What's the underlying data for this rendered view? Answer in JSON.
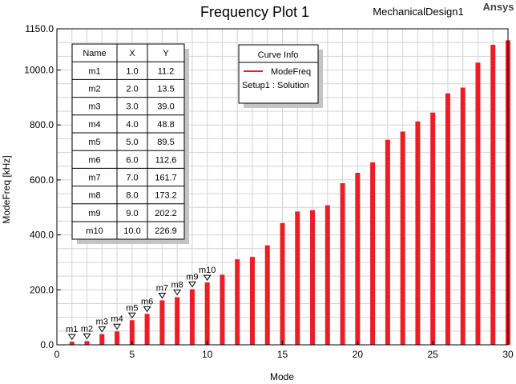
{
  "header": {
    "title": "Frequency Plot 1",
    "design": "MechanicalDesign1",
    "brand": "Ansys"
  },
  "colors": {
    "bar": "#ee1c25",
    "grid": "#d4d4d4",
    "shadow": "#c4c4c4"
  },
  "legend": {
    "title": "Curve Info",
    "entry": "ModeFreq",
    "source": "Setup1 : Solution"
  },
  "marker_table": {
    "headers": [
      "Name",
      "X",
      "Y"
    ],
    "rows": [
      [
        "m1",
        "1.0",
        "11.2"
      ],
      [
        "m2",
        "2.0",
        "13.5"
      ],
      [
        "m3",
        "3.0",
        "39.0"
      ],
      [
        "m4",
        "4.0",
        "48.8"
      ],
      [
        "m5",
        "5.0",
        "89.5"
      ],
      [
        "m6",
        "6.0",
        "112.6"
      ],
      [
        "m7",
        "7.0",
        "161.7"
      ],
      [
        "m8",
        "8.0",
        "173.2"
      ],
      [
        "m9",
        "9.0",
        "202.2"
      ],
      [
        "m10",
        "10.0",
        "226.9"
      ]
    ]
  },
  "chart_data": {
    "type": "bar",
    "title": "Frequency Plot 1",
    "xlabel": "Mode",
    "ylabel": "ModeFreq [kHz]",
    "xlim": [
      0,
      30
    ],
    "ylim": [
      0,
      1150
    ],
    "x_ticks": [
      0,
      5,
      10,
      15,
      20,
      25,
      30
    ],
    "x_tick_labels": [
      "0",
      "5",
      "10",
      "15",
      "20",
      "25",
      "30"
    ],
    "y_ticks": [
      0,
      200,
      400,
      600,
      800,
      1000,
      1150
    ],
    "y_tick_labels": [
      "0.0",
      "200.0",
      "400.0",
      "600.0",
      "800.0",
      "1000.0",
      "1150.0"
    ],
    "grid": true,
    "legend_position": "top-center",
    "series": [
      {
        "name": "ModeFreq",
        "x": [
          1,
          2,
          3,
          4,
          5,
          6,
          7,
          8,
          9,
          10,
          11,
          12,
          13,
          14,
          15,
          16,
          17,
          18,
          19,
          20,
          21,
          22,
          23,
          24,
          25,
          26,
          27,
          28,
          29,
          30
        ],
        "values": [
          11.2,
          13.5,
          39.0,
          48.8,
          89.5,
          112.6,
          161.7,
          173.2,
          202.2,
          226.9,
          255,
          311,
          320,
          362,
          443,
          485,
          490,
          508,
          588,
          626,
          664,
          746,
          776,
          813,
          845,
          915,
          936,
          1027,
          1092,
          1108
        ]
      }
    ],
    "markers": [
      {
        "name": "m1",
        "x": 1
      },
      {
        "name": "m2",
        "x": 2
      },
      {
        "name": "m3",
        "x": 3
      },
      {
        "name": "m4",
        "x": 4
      },
      {
        "name": "m5",
        "x": 5
      },
      {
        "name": "m6",
        "x": 6
      },
      {
        "name": "m7",
        "x": 7
      },
      {
        "name": "m8",
        "x": 8
      },
      {
        "name": "m9",
        "x": 9
      },
      {
        "name": "m10",
        "x": 10
      }
    ]
  }
}
